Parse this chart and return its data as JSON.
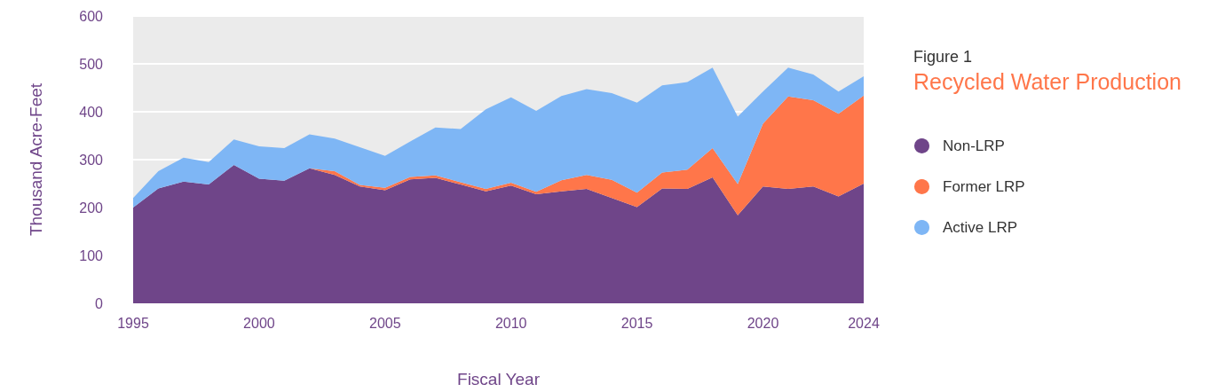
{
  "chart_data": {
    "type": "area",
    "title": "Recycled Water Production",
    "subtitle": "Figure 1",
    "xlabel": "Fiscal Year",
    "ylabel": "Thousand Acre-Feet",
    "x": [
      1995,
      1996,
      1997,
      1998,
      1999,
      2000,
      2001,
      2002,
      2003,
      2004,
      2005,
      2006,
      2007,
      2008,
      2009,
      2010,
      2011,
      2012,
      2013,
      2014,
      2015,
      2016,
      2017,
      2018,
      2019,
      2020,
      2021,
      2022,
      2023,
      2024
    ],
    "series": [
      {
        "name": "Non-LRP",
        "color": "#6f4589",
        "values": [
          200,
          240,
          254,
          248,
          289,
          260,
          256,
          282,
          268,
          244,
          236,
          259,
          262,
          248,
          234,
          246,
          228,
          234,
          239,
          220,
          201,
          240,
          239,
          263,
          184,
          244,
          239,
          244,
          223,
          250
        ]
      },
      {
        "name": "Former LRP",
        "color": "#ff764a",
        "values": [
          0,
          0,
          0,
          0,
          0,
          0,
          0,
          0,
          8,
          3,
          5,
          5,
          5,
          5,
          5,
          6,
          5,
          23,
          29,
          38,
          30,
          33,
          40,
          61,
          65,
          131,
          193,
          180,
          173,
          184
        ]
      },
      {
        "name": "Active LRP",
        "color": "#7eb6f5",
        "values": [
          20,
          36,
          50,
          47,
          53,
          68,
          68,
          71,
          68,
          79,
          67,
          74,
          100,
          111,
          166,
          178,
          169,
          176,
          179,
          181,
          188,
          182,
          183,
          168,
          141,
          67,
          60,
          54,
          46,
          40
        ]
      }
    ],
    "stacked": true,
    "xlim": [
      1995,
      2024
    ],
    "xticks": [
      1995,
      2000,
      2005,
      2010,
      2015,
      2020,
      2024
    ],
    "ylim": [
      0,
      600
    ],
    "yticks": [
      0,
      100,
      200,
      300,
      400,
      500,
      600
    ],
    "grid": "y",
    "legend": "right"
  }
}
